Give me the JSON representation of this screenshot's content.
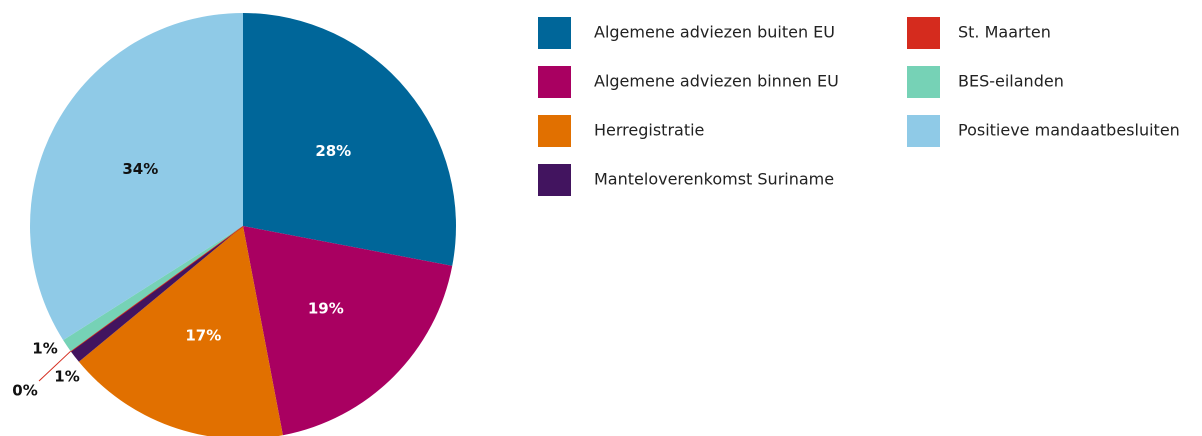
{
  "chart_data": {
    "type": "pie",
    "categories": [
      "Algemene adviezen buiten EU",
      "Algemene adviezen binnen EU",
      "Herregistratie",
      "Manteloverenkomst Suriname",
      "St. Maarten",
      "BES-eilanden",
      "Positieve mandaatbesluiten"
    ],
    "values": [
      28,
      19,
      17,
      1,
      0,
      1,
      34
    ],
    "value_labels": [
      "28%",
      "19%",
      "17%",
      "1%",
      "0%",
      "1%",
      "34%"
    ],
    "colors": [
      "#006699",
      "#a90061",
      "#e17000",
      "#42145f",
      "#d52b1e",
      "#76d2b6",
      "#8fcae7"
    ]
  }
}
